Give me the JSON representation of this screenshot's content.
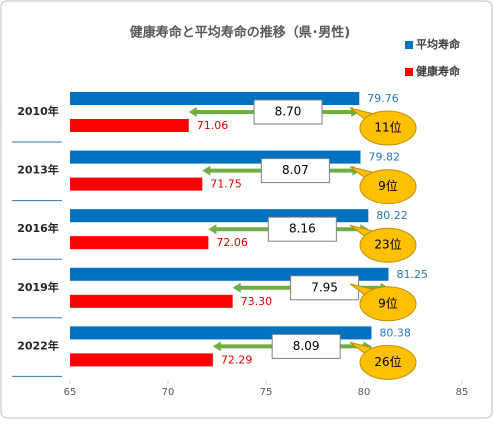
{
  "chart_data": {
    "type": "bar",
    "orientation": "horizontal",
    "title": "健康寿命と平均寿命の推移（県･男性)",
    "categories": [
      "2010年",
      "2013年",
      "2016年",
      "2019年",
      "2022年"
    ],
    "series": [
      {
        "name": "平均寿命",
        "color": "#0070c0",
        "label_color": "#2e75b6",
        "values": [
          79.76,
          79.82,
          80.22,
          81.25,
          80.38
        ]
      },
      {
        "name": "健康寿命",
        "color": "#ff0000",
        "label_color": "#e00000",
        "values": [
          71.06,
          71.75,
          72.06,
          73.3,
          72.29
        ],
        "value_labels": [
          "71.06",
          "71.75",
          "72.06",
          "73.30",
          "72.29"
        ]
      }
    ],
    "gaps": {
      "values": [
        8.7,
        8.07,
        8.16,
        7.95,
        8.09
      ],
      "value_labels": [
        "8.70",
        "8.07",
        "8.16",
        "7.95",
        "8.09"
      ],
      "color": "#70ad47"
    },
    "ranks": {
      "labels": [
        "11位",
        "9位",
        "23位",
        "9位",
        "26位"
      ],
      "color": "#ffc000"
    },
    "xlim": [
      65,
      85
    ],
    "xticks": [
      65,
      70,
      75,
      80,
      85
    ],
    "legend": "top-right"
  }
}
